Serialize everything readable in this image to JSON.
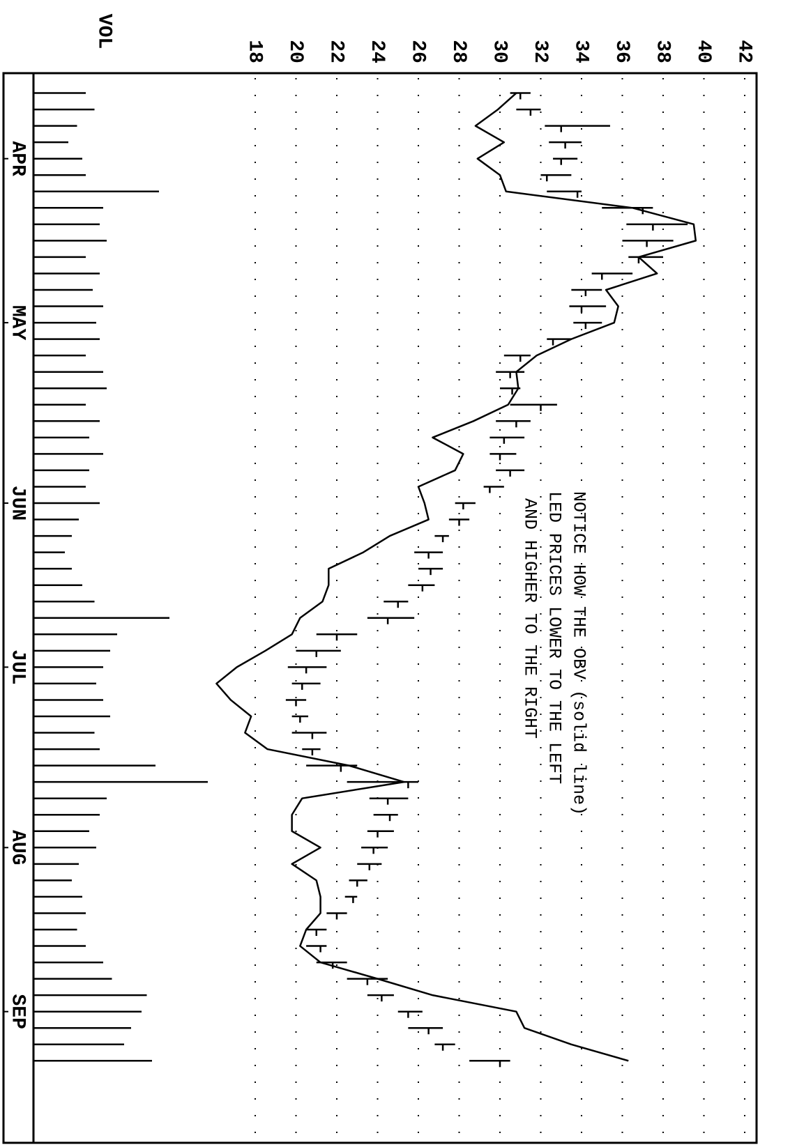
{
  "chart_data": {
    "type": "hlc",
    "annotation": [
      "NOTICE HOW THE OBV (solid line)",
      "LED PRICES LOWER TO THE LEFT",
      "AND HIGHER TO THE RIGHT"
    ],
    "volume_label": "VOL",
    "x": [
      0,
      1,
      2,
      3,
      4,
      5,
      6,
      7,
      8,
      9,
      10,
      11,
      12,
      13,
      14,
      15,
      16,
      17,
      18,
      19,
      20,
      21,
      22,
      23,
      24,
      25,
      26,
      27,
      28,
      29,
      30,
      31,
      32,
      33,
      34,
      35,
      36,
      37,
      38,
      39,
      40,
      41,
      42,
      43,
      44,
      45,
      46,
      47,
      48,
      49,
      50,
      51,
      52,
      53,
      54,
      55,
      56,
      57,
      58,
      59
    ],
    "xlim": [
      -1,
      64
    ],
    "xticks": [
      {
        "value": 4,
        "label": "APR"
      },
      {
        "value": 14,
        "label": "MAY"
      },
      {
        "value": 25,
        "label": "JUN"
      },
      {
        "value": 35,
        "label": "JUL"
      },
      {
        "value": 46,
        "label": "AUG"
      },
      {
        "value": 56,
        "label": "SEP"
      }
    ],
    "ylim": [
      18,
      42
    ],
    "yticks": [
      18,
      20,
      22,
      24,
      26,
      28,
      30,
      32,
      34,
      36,
      38,
      40,
      42
    ],
    "grid": true,
    "color": "#000000",
    "high": [
      31.5,
      32,
      35.4,
      34,
      33.8,
      33.5,
      34,
      37.5,
      39.2,
      38.5,
      38,
      36.5,
      35,
      35.2,
      35,
      33.5,
      31.5,
      31.2,
      31,
      32.8,
      31.5,
      31.2,
      30.8,
      31.2,
      30.2,
      28.8,
      28.5,
      27.5,
      27.2,
      27.2,
      26.8,
      25.5,
      25.8,
      23,
      22.2,
      21.5,
      21.2,
      20.5,
      20.6,
      21.5,
      21.2,
      23,
      26,
      25.5,
      25,
      24.8,
      24.5,
      24.2,
      23.5,
      23,
      22.5,
      21.5,
      21.5,
      22.5,
      24.5,
      24.8,
      26.2,
      27.2,
      27.8,
      30.5
    ],
    "low": [
      30.5,
      30.8,
      32.2,
      32.4,
      32.6,
      32,
      32.3,
      35,
      36.2,
      36,
      36.3,
      34.5,
      33.5,
      33.4,
      33.6,
      32.3,
      30.2,
      29.8,
      30,
      30.5,
      29.8,
      29.5,
      29.5,
      29.8,
      29.2,
      27.8,
      27.5,
      26.8,
      25.8,
      26,
      25.5,
      24.3,
      23.5,
      21,
      20,
      19.6,
      19.8,
      19.5,
      19.8,
      19.8,
      20.3,
      20.5,
      22.5,
      23.6,
      23.8,
      23.5,
      23.2,
      23,
      22.6,
      22.4,
      21.5,
      20.5,
      20.5,
      21,
      22.5,
      23.5,
      25,
      25.5,
      26.8,
      28.5
    ],
    "close": [
      31,
      31.5,
      33,
      33.2,
      33,
      32.3,
      33.8,
      37,
      37.5,
      37.2,
      36.8,
      35,
      34.2,
      34,
      34.2,
      32.6,
      31,
      30.5,
      30.6,
      32,
      30.8,
      30.2,
      30,
      30.5,
      29.5,
      28.2,
      28,
      27.2,
      26.5,
      26.6,
      26.2,
      25,
      24.5,
      22,
      21,
      20.5,
      20.3,
      20,
      20.2,
      20.8,
      20.8,
      22.2,
      25.5,
      24.5,
      24.6,
      24,
      23.8,
      23.6,
      23,
      22.8,
      22,
      21,
      21.2,
      21.8,
      23.5,
      24.2,
      25.5,
      26.5,
      27.2,
      30
    ],
    "obv": [
      30.8,
      29.9,
      28.8,
      30.2,
      28.9,
      30,
      30.3,
      36.5,
      39.5,
      39.6,
      36.8,
      37.7,
      35.2,
      35.8,
      35.6,
      33.5,
      31.8,
      30.8,
      30.9,
      30.4,
      28.7,
      26.7,
      28.2,
      27.8,
      26,
      26.3,
      26.5,
      24.6,
      23.3,
      21.6,
      21.6,
      21.3,
      20.2,
      19.8,
      18.5,
      17.1,
      16.1,
      16.8,
      17.8,
      17.5,
      18.6,
      22.6,
      25.3,
      20.3,
      19.8,
      19.8,
      21.2,
      19.8,
      21,
      21.2,
      21.2,
      20.5,
      20.2,
      21.2,
      24,
      26.7,
      30.8,
      31.2,
      33.5,
      36.3
    ],
    "volume": [
      30,
      35,
      25,
      20,
      28,
      30,
      72,
      40,
      38,
      42,
      30,
      38,
      34,
      40,
      36,
      38,
      30,
      40,
      42,
      30,
      38,
      32,
      40,
      32,
      30,
      38,
      26,
      22,
      18,
      22,
      28,
      35,
      78,
      48,
      44,
      40,
      36,
      40,
      44,
      35,
      38,
      70,
      100,
      42,
      38,
      32,
      36,
      26,
      22,
      28,
      30,
      25,
      30,
      40,
      45,
      65,
      62,
      56,
      52,
      68
    ],
    "vlim": [
      0,
      100
    ]
  }
}
